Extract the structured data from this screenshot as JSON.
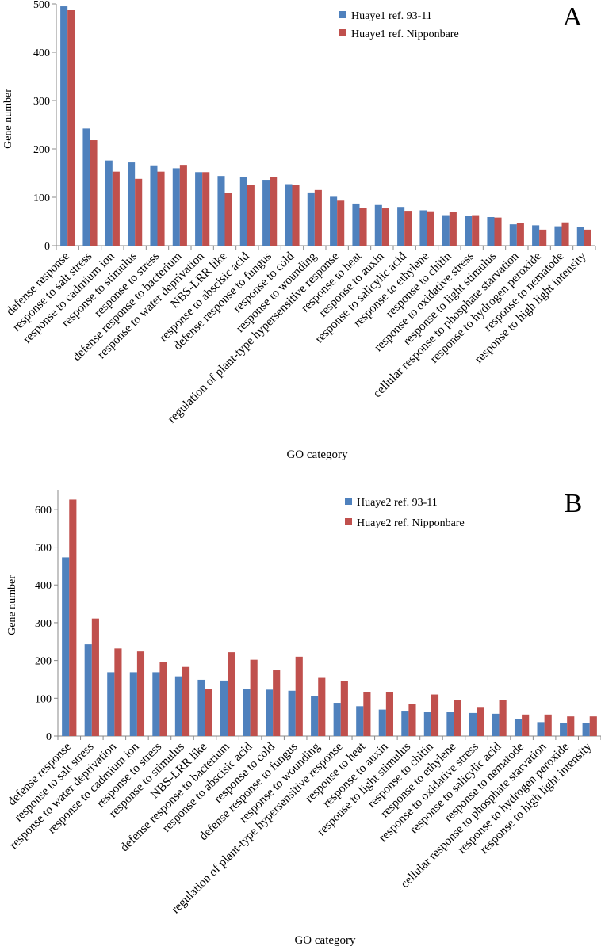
{
  "chart_data": [
    {
      "type": "bar",
      "panel_label": "A",
      "ylabel": "Gene number",
      "xlabel": "GO category",
      "ylim": [
        0,
        500
      ],
      "yticks": [
        0,
        100,
        200,
        300,
        400,
        500
      ],
      "legend_position": "top-right",
      "categories": [
        "defense response",
        "response to salt stress",
        "response to cadmium ion",
        "response to stimulus",
        "response to stress",
        "defense response to bacterium",
        "response to water deprivation",
        "NBS-LRR like",
        "response to abscisic acid",
        "defense response to fungus",
        "response to cold",
        "response to wounding",
        "regulation of plant-type hypersensitive response",
        "response to heat",
        "response to auxin",
        "response to salicylic acid",
        "response to ethylene",
        "response to chitin",
        "response to oxidative stress",
        "response to light stimulus",
        "cellular response to phosphate starvation",
        "response to hydrogen peroxide",
        "response to nematode",
        "response to high light intensity"
      ],
      "series": [
        {
          "name": "Huaye1 ref. 93-11",
          "color": "#4f81bd",
          "values": [
            495,
            242,
            176,
            172,
            166,
            160,
            152,
            144,
            141,
            136,
            127,
            110,
            101,
            87,
            84,
            80,
            73,
            63,
            62,
            59,
            44,
            42,
            40,
            39
          ]
        },
        {
          "name": "Huaye1 ref. Nipponbare",
          "color": "#c0504d",
          "values": [
            487,
            218,
            153,
            138,
            153,
            167,
            152,
            109,
            125,
            141,
            125,
            115,
            93,
            78,
            77,
            72,
            71,
            70,
            63,
            58,
            46,
            33,
            48,
            33
          ]
        }
      ]
    },
    {
      "type": "bar",
      "panel_label": "B",
      "ylabel": "Gene number",
      "xlabel": "GO category",
      "ylim": [
        0,
        650
      ],
      "yticks": [
        0,
        100,
        200,
        300,
        400,
        500,
        600
      ],
      "legend_position": "top-right",
      "categories": [
        "defense response",
        "response to salt stress",
        "response to water deprivation",
        "response to cadmium ion",
        "response to stress",
        "response to stimulus",
        "NBS-LRR like",
        "defense response to bacterium",
        "response to abscisic acid",
        "response to cold",
        "defense response to fungus",
        "response to wounding",
        "regulation of plant-type hypersensitive response",
        "response to heat",
        "response to auxin",
        "response to light stimulus",
        "response to chitin",
        "response to ethylene",
        "response to oxidative stress",
        "response to salicylic acid",
        "response to nematode",
        "cellular response to phosphate starvation",
        "response to hydrogen peroxide",
        "response to high light intensity"
      ],
      "series": [
        {
          "name": "Huaye2 ref. 93-11",
          "color": "#4f81bd",
          "values": [
            473,
            243,
            169,
            169,
            169,
            158,
            149,
            147,
            125,
            123,
            120,
            106,
            88,
            79,
            70,
            67,
            65,
            65,
            61,
            59,
            45,
            37,
            34,
            34
          ]
        },
        {
          "name": "Huaye2 ref. Nipponbare",
          "color": "#c0504d",
          "values": [
            626,
            311,
            232,
            224,
            195,
            183,
            125,
            222,
            202,
            174,
            210,
            154,
            145,
            116,
            117,
            84,
            110,
            96,
            77,
            96,
            57,
            57,
            52,
            52
          ]
        }
      ]
    }
  ]
}
